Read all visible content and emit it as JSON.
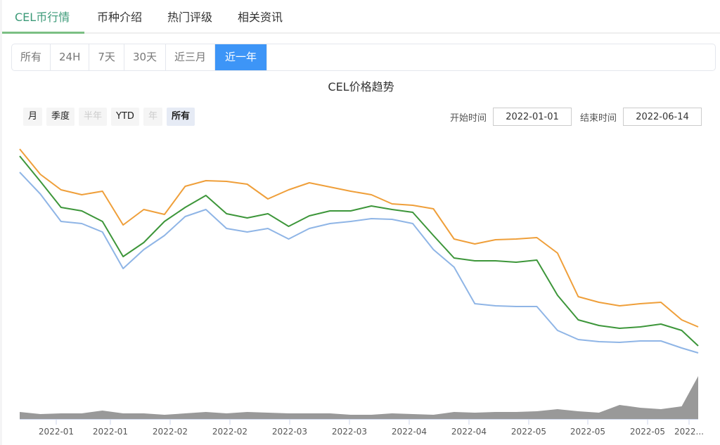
{
  "tabs": [
    {
      "label": "CEL币行情",
      "active": true
    },
    {
      "label": "币种介绍"
    },
    {
      "label": "热门评级"
    },
    {
      "label": "相关资讯"
    }
  ],
  "ranges": [
    {
      "label": "所有"
    },
    {
      "label": "24H"
    },
    {
      "label": "7天"
    },
    {
      "label": "30天"
    },
    {
      "label": "近三月"
    },
    {
      "label": "近一年",
      "active": true
    }
  ],
  "chart_title": "CEL价格趋势",
  "zoom_buttons": [
    {
      "label": "月"
    },
    {
      "label": "季度"
    },
    {
      "label": "半年",
      "disabled": true
    },
    {
      "label": "YTD"
    },
    {
      "label": "年",
      "disabled": true
    },
    {
      "label": "所有",
      "selected": true
    }
  ],
  "date_range": {
    "start_label": "开始时间",
    "start": "2022-01-01",
    "end_label": "结束时间",
    "end": "2022-06-14"
  },
  "colors": {
    "accent": "#3d95f7",
    "tab_active": "#3c9a78",
    "high": "#ef9f3a",
    "mid": "#3d963a",
    "low": "#8fb5e6",
    "volume": "#999999"
  },
  "chart_data": {
    "type": "line",
    "x": [
      "2022-01-01",
      "2022-01-06",
      "2022-01-11",
      "2022-01-16",
      "2022-01-21",
      "2022-01-26",
      "2022-01-31",
      "2022-02-05",
      "2022-02-10",
      "2022-02-15",
      "2022-02-20",
      "2022-02-25",
      "2022-03-02",
      "2022-03-07",
      "2022-03-12",
      "2022-03-17",
      "2022-03-22",
      "2022-03-27",
      "2022-04-01",
      "2022-04-06",
      "2022-04-11",
      "2022-04-16",
      "2022-04-21",
      "2022-04-26",
      "2022-05-01",
      "2022-05-06",
      "2022-05-11",
      "2022-05-16",
      "2022-05-21",
      "2022-05-26",
      "2022-05-31",
      "2022-06-05",
      "2022-06-10",
      "2022-06-14"
    ],
    "series": [
      {
        "values": [
          3.08,
          2.72,
          2.5,
          2.43,
          2.48,
          2.0,
          2.22,
          2.15,
          2.55,
          2.63,
          2.62,
          2.58,
          2.37,
          2.5,
          2.6,
          2.54,
          2.48,
          2.43,
          2.3,
          2.28,
          2.23,
          1.8,
          1.73,
          1.79,
          1.8,
          1.82,
          1.6,
          0.98,
          0.9,
          0.85,
          0.88,
          0.9,
          0.65,
          0.55
        ],
        "color": "#ef9f3a"
      },
      {
        "values": [
          2.98,
          2.62,
          2.25,
          2.2,
          2.05,
          1.55,
          1.75,
          2.05,
          2.25,
          2.42,
          2.16,
          2.1,
          2.16,
          1.98,
          2.13,
          2.2,
          2.2,
          2.27,
          2.22,
          2.18,
          1.85,
          1.53,
          1.49,
          1.49,
          1.47,
          1.5,
          1.0,
          0.65,
          0.57,
          0.53,
          0.55,
          0.59,
          0.5,
          0.28
        ],
        "color": "#3d963a"
      },
      {
        "values": [
          2.75,
          2.44,
          2.05,
          2.02,
          1.9,
          1.38,
          1.65,
          1.85,
          2.12,
          2.22,
          1.95,
          1.9,
          1.95,
          1.8,
          1.95,
          2.02,
          2.05,
          2.09,
          2.08,
          2.02,
          1.65,
          1.4,
          0.88,
          0.85,
          0.84,
          0.84,
          0.5,
          0.37,
          0.34,
          0.33,
          0.35,
          0.35,
          0.25,
          0.18
        ],
        "color": "#8fb5e6"
      }
    ],
    "volume": [
      10,
      7,
      8,
      8,
      12,
      8,
      8,
      6,
      8,
      10,
      8,
      10,
      9,
      8,
      8,
      8,
      6,
      6,
      8,
      7,
      6,
      10,
      9,
      10,
      10,
      11,
      14,
      11,
      9,
      20,
      16,
      14,
      18,
      61
    ],
    "xtick_labels": [
      "2022-01",
      "2022-01",
      "2022-02",
      "2022-02",
      "2022-03",
      "2022-03",
      "2022-04",
      "2022-04",
      "2022-05",
      "2022-05",
      "2022-05",
      "2022..."
    ],
    "grid": false
  }
}
